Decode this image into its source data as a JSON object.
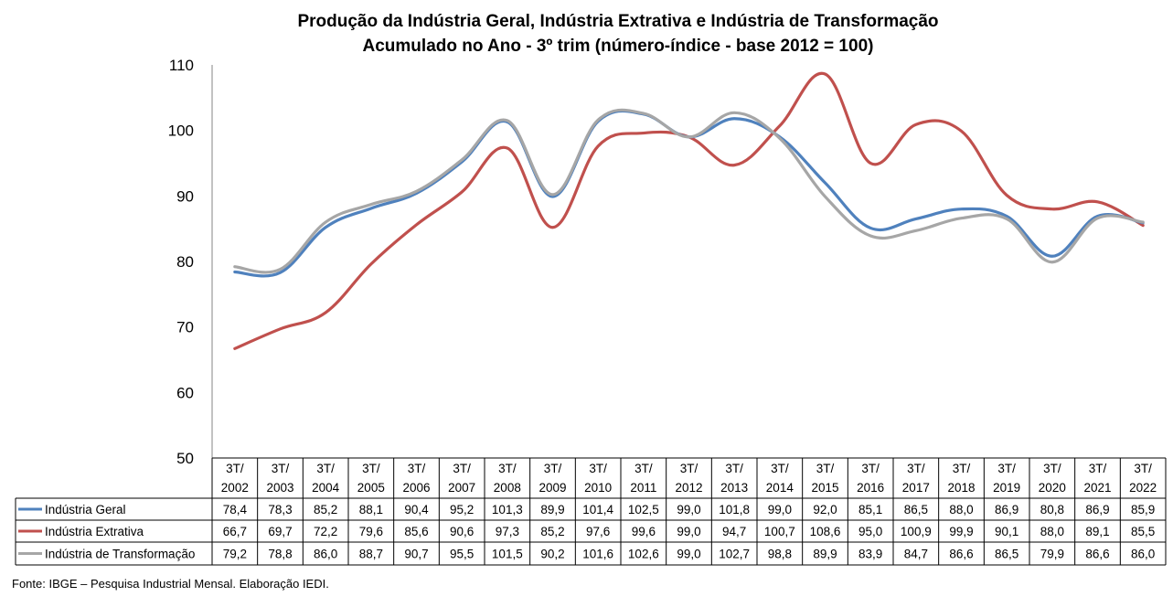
{
  "chart_data": {
    "type": "line",
    "title": "Produção da Indústria Geral, Indústria Extrativa e Indústria de Transformação",
    "subtitle": "Acumulado no Ano - 3º trim (número-índice - base 2012 = 100)",
    "ylim": [
      50,
      110
    ],
    "yticks": [
      "50",
      "60",
      "70",
      "80",
      "90",
      "100",
      "110"
    ],
    "grid": false,
    "legend": "data-table",
    "categories": [
      [
        "3T/",
        "2002"
      ],
      [
        "3T/",
        "2003"
      ],
      [
        "3T/",
        "2004"
      ],
      [
        "3T/",
        "2005"
      ],
      [
        "3T/",
        "2006"
      ],
      [
        "3T/",
        "2007"
      ],
      [
        "3T/",
        "2008"
      ],
      [
        "3T/",
        "2009"
      ],
      [
        "3T/",
        "2010"
      ],
      [
        "3T/",
        "2011"
      ],
      [
        "3T/",
        "2012"
      ],
      [
        "3T/",
        "2013"
      ],
      [
        "3T/",
        "2014"
      ],
      [
        "3T/",
        "2015"
      ],
      [
        "3T/",
        "2016"
      ],
      [
        "3T/",
        "2017"
      ],
      [
        "3T/",
        "2018"
      ],
      [
        "3T/",
        "2019"
      ],
      [
        "3T/",
        "2020"
      ],
      [
        "3T/",
        "2021"
      ],
      [
        "3T/",
        "2022"
      ]
    ],
    "series": [
      {
        "name": "Indústria Geral",
        "color": "#4f81bd",
        "values": [
          78.4,
          78.3,
          85.2,
          88.1,
          90.4,
          95.2,
          101.3,
          89.9,
          101.4,
          102.5,
          99.0,
          101.8,
          99.0,
          92.0,
          85.1,
          86.5,
          88.0,
          86.9,
          80.8,
          86.9,
          85.9
        ],
        "labels": [
          "78,4",
          "78,3",
          "85,2",
          "88,1",
          "90,4",
          "95,2",
          "101,3",
          "89,9",
          "101,4",
          "102,5",
          "99,0",
          "101,8",
          "99,0",
          "92,0",
          "85,1",
          "86,5",
          "88,0",
          "86,9",
          "80,8",
          "86,9",
          "85,9"
        ]
      },
      {
        "name": "Indústria Extrativa",
        "color": "#c0504d",
        "values": [
          66.7,
          69.7,
          72.2,
          79.6,
          85.6,
          90.6,
          97.3,
          85.2,
          97.6,
          99.6,
          99.0,
          94.7,
          100.7,
          108.6,
          95.0,
          100.9,
          99.9,
          90.1,
          88.0,
          89.1,
          85.5
        ],
        "labels": [
          "66,7",
          "69,7",
          "72,2",
          "79,6",
          "85,6",
          "90,6",
          "97,3",
          "85,2",
          "97,6",
          "99,6",
          "99,0",
          "94,7",
          "100,7",
          "108,6",
          "95,0",
          "100,9",
          "99,9",
          "90,1",
          "88,0",
          "89,1",
          "85,5"
        ]
      },
      {
        "name": "Indústria de Transformação",
        "color": "#a6a6a6",
        "values": [
          79.2,
          78.8,
          86.0,
          88.7,
          90.7,
          95.5,
          101.5,
          90.2,
          101.6,
          102.6,
          99.0,
          102.7,
          98.8,
          89.9,
          83.9,
          84.7,
          86.6,
          86.5,
          79.9,
          86.6,
          86.0
        ],
        "labels": [
          "79,2",
          "78,8",
          "86,0",
          "88,7",
          "90,7",
          "95,5",
          "101,5",
          "90,2",
          "101,6",
          "102,6",
          "99,0",
          "102,7",
          "98,8",
          "89,9",
          "83,9",
          "84,7",
          "86,6",
          "86,5",
          "79,9",
          "86,6",
          "86,0"
        ]
      }
    ]
  },
  "source": "Fonte: IBGE – Pesquisa Industrial Mensal. Elaboração IEDI."
}
